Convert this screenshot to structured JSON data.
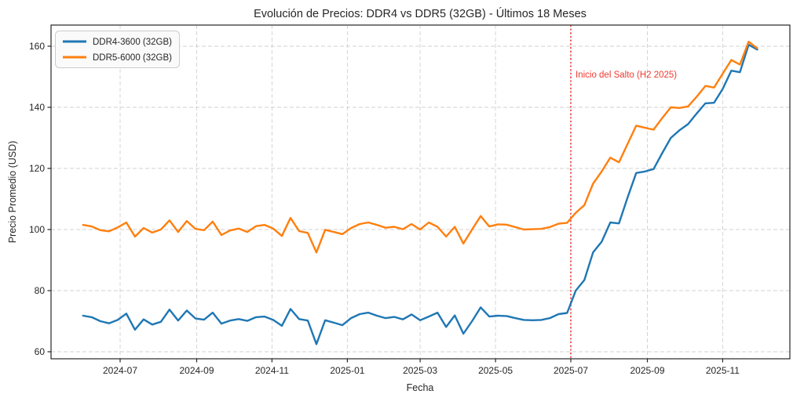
{
  "figure": {
    "title": "Evolución de Precios: DDR4 vs DDR5 (32GB) - Últimos 18 Meses",
    "xlabel": "Fecha",
    "ylabel": "Precio Promedio (USD)"
  },
  "colors": {
    "ddr4": "#1f77b4",
    "ddr5": "#ff7f0e",
    "annotation": "#f03a30",
    "grid": "#cccccc"
  },
  "chart_data": {
    "type": "line",
    "title": "Evolución de Precios: DDR4 vs DDR5 (32GB) - Últimos 18 Meses",
    "xlabel": "Fecha",
    "ylabel": "Precio Promedio (USD)",
    "ylim": [
      57.5,
      167
    ],
    "y_ticks": [
      60,
      80,
      100,
      120,
      140,
      160
    ],
    "x_ticks": [
      "2024-07",
      "2024-09",
      "2024-11",
      "2025-01",
      "2025-03",
      "2025-05",
      "2025-07",
      "2025-09",
      "2025-11"
    ],
    "grid": true,
    "legend_position": "upper left",
    "annotation": {
      "text": "Inicio del Salto (H2 2025)",
      "x": "2025-07-01",
      "color": "#f03a30",
      "line_style": "dotted"
    },
    "x": [
      "2024-06-01",
      "2024-06-08",
      "2024-06-15",
      "2024-06-22",
      "2024-06-29",
      "2024-07-06",
      "2024-07-13",
      "2024-07-20",
      "2024-07-27",
      "2024-08-03",
      "2024-08-10",
      "2024-08-17",
      "2024-08-24",
      "2024-08-31",
      "2024-09-07",
      "2024-09-14",
      "2024-09-21",
      "2024-09-28",
      "2024-10-05",
      "2024-10-12",
      "2024-10-19",
      "2024-10-26",
      "2024-11-02",
      "2024-11-09",
      "2024-11-16",
      "2024-11-23",
      "2024-11-30",
      "2024-12-07",
      "2024-12-14",
      "2024-12-21",
      "2024-12-28",
      "2025-01-04",
      "2025-01-11",
      "2025-01-18",
      "2025-01-25",
      "2025-02-01",
      "2025-02-08",
      "2025-02-15",
      "2025-02-22",
      "2025-03-01",
      "2025-03-08",
      "2025-03-15",
      "2025-03-22",
      "2025-03-29",
      "2025-04-05",
      "2025-04-12",
      "2025-04-19",
      "2025-04-26",
      "2025-05-03",
      "2025-05-10",
      "2025-05-17",
      "2025-05-24",
      "2025-05-31",
      "2025-06-07",
      "2025-06-14",
      "2025-06-21",
      "2025-06-28",
      "2025-07-05",
      "2025-07-12",
      "2025-07-19",
      "2025-07-26",
      "2025-08-02",
      "2025-08-09",
      "2025-08-16",
      "2025-08-23",
      "2025-08-30",
      "2025-09-06",
      "2025-09-13",
      "2025-09-20",
      "2025-09-27",
      "2025-10-04",
      "2025-10-11",
      "2025-10-18",
      "2025-10-25",
      "2025-11-01",
      "2025-11-08",
      "2025-11-15",
      "2025-11-22",
      "2025-11-29"
    ],
    "series": [
      {
        "name": "DDR4-3600 (32GB)",
        "color": "#1f77b4",
        "values": [
          71.8,
          71.3,
          70.0,
          69.3,
          70.4,
          72.5,
          67.2,
          70.6,
          68.9,
          69.8,
          73.8,
          70.2,
          73.5,
          70.9,
          70.5,
          72.8,
          69.2,
          70.2,
          70.7,
          70.1,
          71.3,
          71.5,
          70.4,
          68.5,
          74.0,
          70.7,
          70.2,
          62.5,
          70.3,
          69.5,
          68.7,
          71.0,
          72.3,
          72.8,
          71.8,
          71.0,
          71.4,
          70.6,
          72.2,
          70.3,
          71.5,
          72.8,
          68.1,
          71.9,
          65.9,
          70.0,
          74.5,
          71.5,
          71.8,
          71.7,
          71.0,
          70.4,
          70.3,
          70.4,
          71.0,
          72.3,
          72.7,
          80.0,
          83.5,
          92.5,
          96.0,
          102.3,
          102.0,
          110.5,
          118.5,
          119.0,
          119.8,
          125.0,
          130.0,
          132.5,
          134.5,
          138.0,
          141.3,
          141.5,
          146.0,
          152.0,
          151.5,
          160.5,
          158.9
        ]
      },
      {
        "name": "DDR5-6000 (32GB)",
        "color": "#ff7f0e",
        "values": [
          101.5,
          101.0,
          99.8,
          99.4,
          100.7,
          102.3,
          97.7,
          100.5,
          99.0,
          100.0,
          103.0,
          99.2,
          102.8,
          100.2,
          99.8,
          102.6,
          98.2,
          99.7,
          100.3,
          99.2,
          101.1,
          101.5,
          100.3,
          97.9,
          103.8,
          99.5,
          98.9,
          92.5,
          99.9,
          99.2,
          98.5,
          100.5,
          101.8,
          102.3,
          101.5,
          100.6,
          100.9,
          100.1,
          101.8,
          100.0,
          102.3,
          100.9,
          97.7,
          100.9,
          95.4,
          100.0,
          104.4,
          101.0,
          101.7,
          101.6,
          100.8,
          100.0,
          100.1,
          100.2,
          100.8,
          101.9,
          102.2,
          105.5,
          108.0,
          115.0,
          119.0,
          123.5,
          122.0,
          128.0,
          134.0,
          133.3,
          132.7,
          136.5,
          140.0,
          139.8,
          140.3,
          143.5,
          147.0,
          146.5,
          151.0,
          155.5,
          154.0,
          161.5,
          159.3
        ]
      }
    ]
  }
}
